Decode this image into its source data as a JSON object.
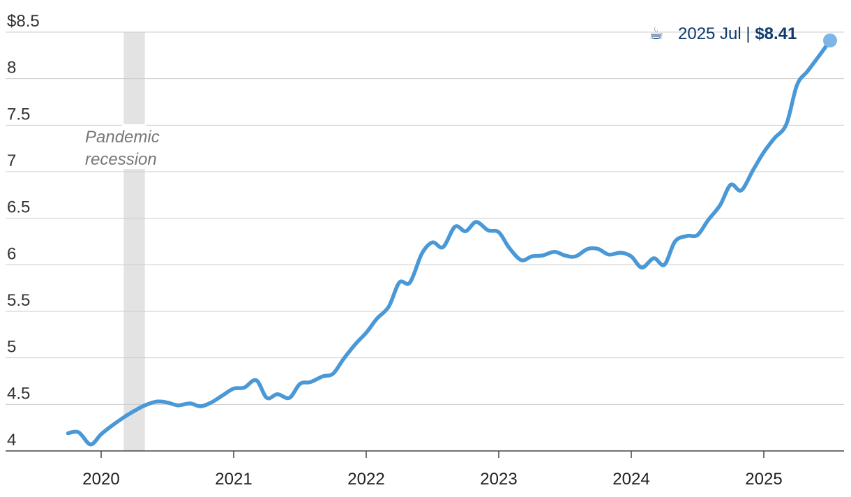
{
  "chart_data": {
    "type": "line",
    "title": "",
    "xlabel": "",
    "ylabel": "",
    "ylim": [
      4,
      8.5
    ],
    "yticks": [
      "$8.5",
      "8",
      "7.5",
      "7",
      "6.5",
      "6",
      "5.5",
      "5",
      "4.5",
      "4"
    ],
    "ytick_values": [
      8.5,
      8,
      7.5,
      7,
      6.5,
      6,
      5.5,
      5,
      4.5,
      4
    ],
    "xticks": [
      "2020",
      "2021",
      "2022",
      "2023",
      "2024",
      "2025"
    ],
    "xtick_values": [
      2020,
      2021,
      2022,
      2023,
      2024,
      2025
    ],
    "grid": true,
    "line_color": "#4a98d6",
    "recession": {
      "label_line1": "Pandemic",
      "label_line2": "recession",
      "start": 2020.17,
      "end": 2020.33,
      "color": "#e3e3e3"
    },
    "callout": {
      "icon": "coffee-icon",
      "glyph": "☕",
      "label": "2025 Jul | ",
      "value": "$8.41"
    },
    "series": [
      {
        "x": [
          2019.75,
          2019.83,
          2019.92,
          2020.0,
          2020.08,
          2020.17,
          2020.25,
          2020.33,
          2020.42,
          2020.5,
          2020.58,
          2020.67,
          2020.75,
          2020.83,
          2020.92,
          2021.0,
          2021.08,
          2021.17,
          2021.25,
          2021.33,
          2021.42,
          2021.5,
          2021.58,
          2021.67,
          2021.75,
          2021.83,
          2021.92,
          2022.0,
          2022.08,
          2022.17,
          2022.25,
          2022.33,
          2022.42,
          2022.5,
          2022.58,
          2022.67,
          2022.75,
          2022.83,
          2022.92,
          2023.0,
          2023.08,
          2023.17,
          2023.25,
          2023.33,
          2023.42,
          2023.5,
          2023.58,
          2023.67,
          2023.75,
          2023.83,
          2023.92,
          2024.0,
          2024.08,
          2024.17,
          2024.25,
          2024.33,
          2024.42,
          2024.5,
          2024.58,
          2024.67,
          2024.75,
          2024.83,
          2024.92,
          2025.0,
          2025.08,
          2025.17,
          2025.25,
          2025.33,
          2025.42,
          2025.5
        ],
        "y": [
          4.19,
          4.2,
          4.07,
          4.18,
          4.27,
          4.36,
          4.43,
          4.49,
          4.53,
          4.52,
          4.49,
          4.51,
          4.48,
          4.52,
          4.6,
          4.67,
          4.68,
          4.76,
          4.57,
          4.61,
          4.57,
          4.72,
          4.74,
          4.8,
          4.83,
          4.99,
          5.15,
          5.27,
          5.42,
          5.55,
          5.81,
          5.81,
          6.12,
          6.24,
          6.19,
          6.41,
          6.36,
          6.46,
          6.37,
          6.35,
          6.18,
          6.05,
          6.09,
          6.1,
          6.14,
          6.1,
          6.09,
          6.17,
          6.17,
          6.11,
          6.13,
          6.09,
          5.97,
          6.07,
          6.0,
          6.25,
          6.31,
          6.32,
          6.48,
          6.64,
          6.86,
          6.8,
          7.02,
          7.21,
          7.36,
          7.51,
          7.93,
          8.08,
          8.25,
          8.41
        ]
      }
    ]
  }
}
